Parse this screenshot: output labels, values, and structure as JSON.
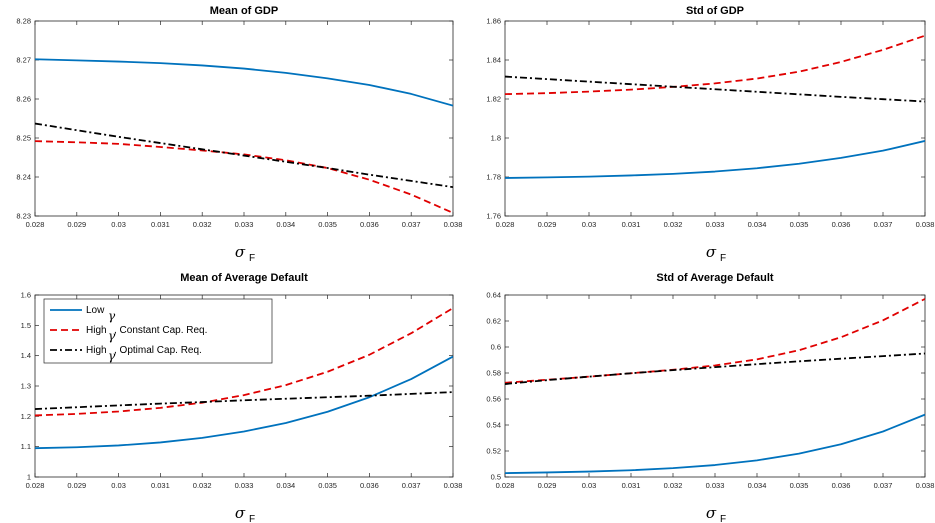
{
  "figure": {
    "x_axis_symbol": "σ",
    "x_axis_subscript": "F"
  },
  "legend": {
    "entries": [
      {
        "label": "Low",
        "suffix": "",
        "color": "#0072BD",
        "style": "solid"
      },
      {
        "label": "High",
        "suffix": ", Constant Cap. Req.",
        "color": "#E00000",
        "style": "dashed"
      },
      {
        "label": "High",
        "suffix": ", Optimal Cap. Req.",
        "color": "#000000",
        "style": "dashdot"
      }
    ],
    "gamma_symbol": "γ",
    "placement": "top-left of Mean of Average Default panel"
  },
  "chart_data": [
    {
      "type": "line",
      "title": "Mean of GDP",
      "xlabel": "σF",
      "x": [
        0.028,
        0.029,
        0.03,
        0.031,
        0.032,
        0.033,
        0.034,
        0.035,
        0.036,
        0.037,
        0.038
      ],
      "xlim": [
        0.028,
        0.038
      ],
      "ylim": [
        8.23,
        8.28
      ],
      "xticks": [
        "0.028",
        "0.029",
        "0.03",
        "0.031",
        "0.032",
        "0.033",
        "0.034",
        "0.035",
        "0.036",
        "0.037",
        "0.038"
      ],
      "yticks": [
        "8.23",
        "8.24",
        "8.25",
        "8.26",
        "8.27",
        "8.28"
      ],
      "grid": false,
      "series": [
        {
          "name": "Low γ",
          "color": "#0072BD",
          "style": "solid",
          "values": [
            8.2702,
            8.2699,
            8.2696,
            8.2692,
            8.2686,
            8.2678,
            8.2667,
            8.2653,
            8.2636,
            8.2613,
            8.2583
          ]
        },
        {
          "name": "High γ, Constant Cap. Req.",
          "color": "#E00000",
          "style": "dashed",
          "values": [
            8.2492,
            8.2489,
            8.2485,
            8.2477,
            8.2468,
            8.2458,
            8.2443,
            8.2423,
            8.2393,
            8.2355,
            8.2308
          ]
        },
        {
          "name": "High γ, Optimal Cap. Req.",
          "color": "#000000",
          "style": "dashdot",
          "values": [
            8.2537,
            8.252,
            8.2503,
            8.2487,
            8.2471,
            8.2455,
            8.2439,
            8.2423,
            8.2406,
            8.239,
            8.2374
          ]
        }
      ]
    },
    {
      "type": "line",
      "title": "Std of GDP",
      "xlabel": "σF",
      "x": [
        0.028,
        0.029,
        0.03,
        0.031,
        0.032,
        0.033,
        0.034,
        0.035,
        0.036,
        0.037,
        0.038
      ],
      "xlim": [
        0.028,
        0.038
      ],
      "ylim": [
        1.76,
        1.86
      ],
      "xticks": [
        "0.028",
        "0.029",
        "0.03",
        "0.031",
        "0.032",
        "0.033",
        "0.034",
        "0.035",
        "0.036",
        "0.037",
        "0.038"
      ],
      "yticks": [
        "1.76",
        "1.78",
        "1.8",
        "1.82",
        "1.84",
        "1.86"
      ],
      "grid": false,
      "series": [
        {
          "name": "Low γ",
          "color": "#0072BD",
          "style": "solid",
          "values": [
            1.7795,
            1.7798,
            1.7802,
            1.7808,
            1.7816,
            1.7828,
            1.7845,
            1.7868,
            1.7898,
            1.7935,
            1.7985
          ]
        },
        {
          "name": "High γ, Constant Cap. Req.",
          "color": "#E00000",
          "style": "dashed",
          "values": [
            1.8225,
            1.823,
            1.8238,
            1.8248,
            1.8262,
            1.828,
            1.8305,
            1.834,
            1.839,
            1.8452,
            1.8525
          ]
        },
        {
          "name": "High γ, Optimal Cap. Req.",
          "color": "#000000",
          "style": "dashdot",
          "values": [
            1.8315,
            1.8302,
            1.8289,
            1.8276,
            1.8263,
            1.825,
            1.8237,
            1.8224,
            1.8211,
            1.8199,
            1.8187
          ]
        }
      ]
    },
    {
      "type": "line",
      "title": "Mean of Average Default",
      "xlabel": "σF",
      "x": [
        0.028,
        0.029,
        0.03,
        0.031,
        0.032,
        0.033,
        0.034,
        0.035,
        0.036,
        0.037,
        0.038
      ],
      "xlim": [
        0.028,
        0.038
      ],
      "ylim": [
        1.0,
        1.6
      ],
      "xticks": [
        "0.028",
        "0.029",
        "0.03",
        "0.031",
        "0.032",
        "0.033",
        "0.034",
        "0.035",
        "0.036",
        "0.037",
        "0.038"
      ],
      "yticks": [
        "1",
        "1.1",
        "1.2",
        "1.3",
        "1.4",
        "1.5",
        "1.6"
      ],
      "grid": false,
      "series": [
        {
          "name": "Low γ",
          "color": "#0072BD",
          "style": "solid",
          "values": [
            1.095,
            1.098,
            1.104,
            1.114,
            1.129,
            1.15,
            1.178,
            1.215,
            1.263,
            1.323,
            1.397
          ]
        },
        {
          "name": "High γ, Constant Cap. Req.",
          "color": "#E00000",
          "style": "dashed",
          "values": [
            1.203,
            1.208,
            1.216,
            1.228,
            1.245,
            1.27,
            1.303,
            1.347,
            1.403,
            1.474,
            1.557
          ]
        },
        {
          "name": "High γ, Optimal Cap. Req.",
          "color": "#000000",
          "style": "dashdot",
          "values": [
            1.224,
            1.23,
            1.236,
            1.242,
            1.247,
            1.253,
            1.258,
            1.263,
            1.268,
            1.274,
            1.28
          ]
        }
      ]
    },
    {
      "type": "line",
      "title": "Std of Average Default",
      "xlabel": "σF",
      "x": [
        0.028,
        0.029,
        0.03,
        0.031,
        0.032,
        0.033,
        0.034,
        0.035,
        0.036,
        0.037,
        0.038
      ],
      "xlim": [
        0.028,
        0.038
      ],
      "ylim": [
        0.5,
        0.64
      ],
      "xticks": [
        "0.028",
        "0.029",
        "0.03",
        "0.031",
        "0.032",
        "0.033",
        "0.034",
        "0.035",
        "0.036",
        "0.037",
        "0.038"
      ],
      "yticks": [
        "0.5",
        "0.52",
        "0.54",
        "0.56",
        "0.58",
        "0.6",
        "0.62",
        "0.64"
      ],
      "grid": false,
      "series": [
        {
          "name": "Low γ",
          "color": "#0072BD",
          "style": "solid",
          "values": [
            0.503,
            0.5035,
            0.5042,
            0.5052,
            0.5068,
            0.5092,
            0.5128,
            0.518,
            0.5252,
            0.535,
            0.548
          ]
        },
        {
          "name": "High γ, Constant Cap. Req.",
          "color": "#E00000",
          "style": "dashed",
          "values": [
            0.5725,
            0.5748,
            0.5772,
            0.5798,
            0.5825,
            0.5858,
            0.5905,
            0.5975,
            0.6075,
            0.6205,
            0.637
          ]
        },
        {
          "name": "High γ, Optimal Cap. Req.",
          "color": "#000000",
          "style": "dashdot",
          "values": [
            0.5715,
            0.5745,
            0.5772,
            0.5798,
            0.5822,
            0.5845,
            0.5868,
            0.589,
            0.591,
            0.593,
            0.595
          ]
        }
      ]
    }
  ]
}
